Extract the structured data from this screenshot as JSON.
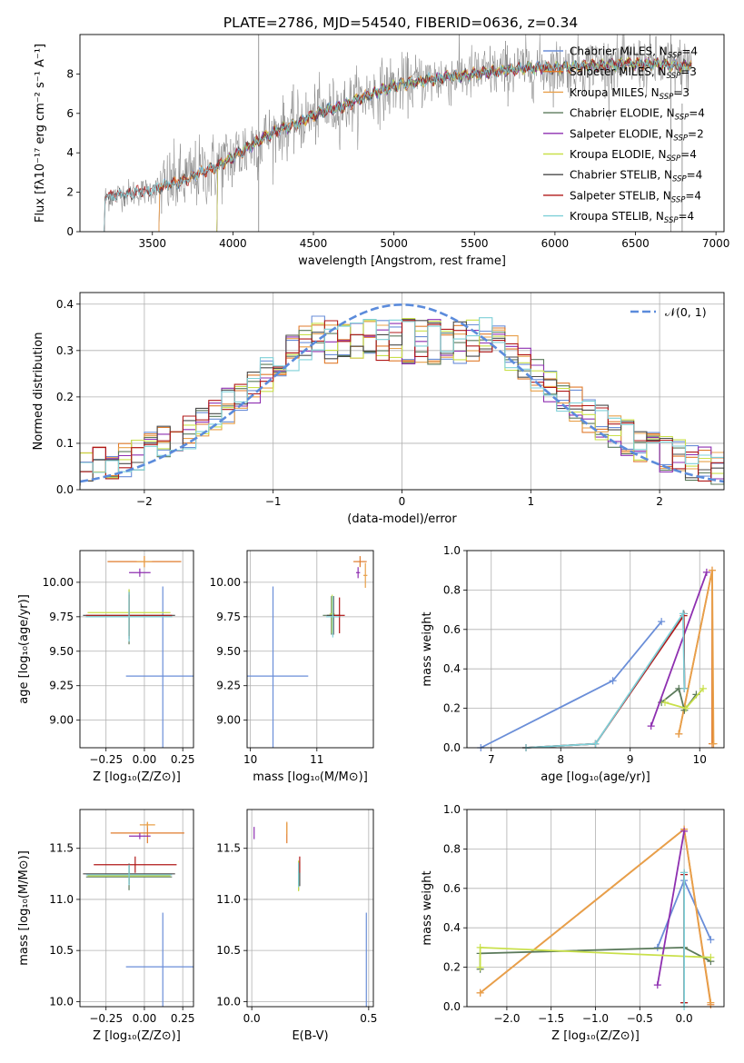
{
  "title": "PLATE=2786, MJD=54540, FIBERID=0636, z=0.34",
  "colors": {
    "Chabrier MILES": "#6a8ed8",
    "Salpeter MILES": "#e07b2c",
    "Kroupa MILES": "#e8a04a",
    "Chabrier ELODIE": "#5b7a5b",
    "Salpeter ELODIE": "#8e2fb0",
    "Kroupa ELODIE": "#c9e04a",
    "Chabrier STELIB": "#4a4a4a",
    "Salpeter STELIB": "#b01818",
    "Kroupa STELIB": "#7fd0d8",
    "observed": "#808080",
    "normal": "#5b8bdb"
  },
  "chart_data": [
    {
      "type": "line",
      "title": "PLATE=2786, MJD=54540, FIBERID=0636, z=0.34",
      "xlabel": "wavelength [Angstrom, rest frame]",
      "ylabel": "Flux [fλ10⁻¹⁷ erg cm⁻² s⁻¹ A⁻¹]",
      "xlim": [
        3050,
        7050
      ],
      "ylim": [
        0,
        10
      ],
      "xticks": [
        "3500",
        "4000",
        "4500",
        "5000",
        "5500",
        "6000",
        "6500",
        "7000"
      ],
      "yticks": [
        "0",
        "2",
        "4",
        "6",
        "8"
      ],
      "legend_position": "top-right",
      "legend": [
        {
          "name": "Chabrier MILES",
          "text": "Chabrier MILES, N",
          "sub": "SSP",
          "suffix": "=4"
        },
        {
          "name": "Salpeter MILES",
          "text": "Salpeter MILES, N",
          "sub": "SSP",
          "suffix": "=3"
        },
        {
          "name": "Kroupa MILES",
          "text": "Kroupa MILES, N",
          "sub": "SSP",
          "suffix": "=3"
        },
        {
          "name": "Chabrier ELODIE",
          "text": "Chabrier ELODIE, N",
          "sub": "SSP",
          "suffix": "=4"
        },
        {
          "name": "Salpeter ELODIE",
          "text": "Salpeter ELODIE, N",
          "sub": "SSP",
          "suffix": "=2"
        },
        {
          "name": "Kroupa ELODIE",
          "text": "Kroupa ELODIE, N",
          "sub": "SSP",
          "suffix": "=4"
        },
        {
          "name": "Chabrier STELIB",
          "text": "Chabrier STELIB, N",
          "sub": "SSP",
          "suffix": "=4"
        },
        {
          "name": "Salpeter STELIB",
          "text": "Salpeter STELIB, N",
          "sub": "SSP",
          "suffix": "=4"
        },
        {
          "name": "Kroupa STELIB",
          "text": "Kroupa STELIB, N",
          "sub": "SSP",
          "suffix": "=4"
        }
      ],
      "continuum": {
        "x": [
          3200,
          3300,
          3400,
          3500,
          3600,
          3700,
          3800,
          3900,
          4000,
          4100,
          4200,
          4300,
          4400,
          4500,
          4600,
          4700,
          4800,
          4900,
          5000,
          5200,
          5400,
          5600,
          5800,
          6000,
          6200,
          6400,
          6600,
          6800,
          6850
        ],
        "y": [
          1.7,
          1.9,
          2.0,
          2.1,
          2.4,
          2.6,
          3.0,
          3.3,
          3.8,
          4.3,
          4.8,
          5.2,
          5.5,
          5.9,
          6.2,
          6.4,
          6.8,
          7.1,
          7.4,
          7.7,
          7.9,
          8.1,
          8.3,
          8.3,
          8.4,
          8.5,
          8.5,
          8.4,
          8.4
        ]
      },
      "model_start_wavelengths": {
        "Chabrier MILES": 3540,
        "Salpeter MILES": 3540,
        "Kroupa MILES": 3540,
        "Chabrier ELODIE": 3900,
        "Salpeter ELODIE": 3900,
        "Kroupa ELODIE": 3900,
        "Chabrier STELIB": 3200,
        "Salpeter STELIB": 3200,
        "Kroupa STELIB": 3200
      }
    },
    {
      "type": "bar",
      "subtype": "step-histogram",
      "xlabel": "(data-model)/error",
      "ylabel": "Normed distribution",
      "xlim": [
        -2.5,
        2.5
      ],
      "ylim": [
        0,
        0.425
      ],
      "xticks": [
        "−2",
        "−1",
        "0",
        "1",
        "2"
      ],
      "yticks": [
        "0.0",
        "0.1",
        "0.2",
        "0.3",
        "0.4"
      ],
      "bin_width": 0.1,
      "legend_position": "top-right",
      "legend": [
        {
          "name": "N(0,1)",
          "label": "𝒩(0, 1)",
          "style": "dashed"
        }
      ]
    },
    {
      "type": "scatter",
      "subtype": "errorbar",
      "xlabel": "Z [log₁₀(Z/Z⊙)]",
      "ylabel": "age  [log₁₀(age/yr)]",
      "xlim": [
        -0.42,
        0.32
      ],
      "ylim": [
        8.8,
        10.23
      ],
      "xticks": [
        "−0.25",
        "0.00",
        "0.25"
      ],
      "yticks": [
        "9.00",
        "9.25",
        "9.50",
        "9.75",
        "10.00"
      ],
      "points": [
        {
          "model": "Chabrier MILES",
          "x": 0.12,
          "y": 9.32,
          "xerr": 0.24,
          "yerr": 0.65
        },
        {
          "model": "Salpeter MILES",
          "x": 0.0,
          "y": 10.15,
          "xerr": 0.24,
          "yerr": 0.04
        },
        {
          "model": "Kroupa MILES",
          "x": 0.0,
          "y": 10.15,
          "xerr": 0.05,
          "yerr": 0.04
        },
        {
          "model": "Chabrier ELODIE",
          "x": -0.1,
          "y": 9.75,
          "xerr": 0.28,
          "yerr": 0.2
        },
        {
          "model": "Salpeter ELODIE",
          "x": -0.03,
          "y": 10.07,
          "xerr": 0.07,
          "yerr": 0.03
        },
        {
          "model": "Kroupa ELODIE",
          "x": -0.1,
          "y": 9.78,
          "xerr": 0.27,
          "yerr": 0.17
        },
        {
          "model": "Chabrier STELIB",
          "x": -0.1,
          "y": 9.76,
          "xerr": 0.3,
          "yerr": 0.17
        },
        {
          "model": "Salpeter STELIB",
          "x": -0.1,
          "y": 9.76,
          "xerr": 0.28,
          "yerr": 0.15
        },
        {
          "model": "Kroupa STELIB",
          "x": -0.1,
          "y": 9.75,
          "xerr": 0.28,
          "yerr": 0.18
        }
      ]
    },
    {
      "type": "scatter",
      "subtype": "errorbar",
      "xlabel": "mass [log₁₀(M/M⊙)]",
      "ylabel": "",
      "xlim": [
        9.95,
        11.85
      ],
      "ylim": [
        8.8,
        10.23
      ],
      "xticks": [
        "10",
        "11"
      ],
      "yticks": [
        "9.00",
        "9.25",
        "9.50",
        "9.75",
        "10.00"
      ],
      "points": [
        {
          "model": "Chabrier MILES",
          "x": 10.34,
          "y": 9.32,
          "xerr": 0.53,
          "yerr": 0.65
        },
        {
          "model": "Salpeter MILES",
          "x": 11.65,
          "y": 10.15,
          "xerr": 0.1,
          "yerr": 0.04
        },
        {
          "model": "Kroupa MILES",
          "x": 11.73,
          "y": 10.05,
          "xerr": 0.03,
          "yerr": 0.09
        },
        {
          "model": "Chabrier ELODIE",
          "x": 11.22,
          "y": 9.76,
          "xerr": 0.13,
          "yerr": 0.14
        },
        {
          "model": "Salpeter ELODIE",
          "x": 11.62,
          "y": 10.07,
          "xerr": 0.03,
          "yerr": 0.04
        },
        {
          "model": "Kroupa ELODIE",
          "x": 11.23,
          "y": 9.77,
          "xerr": 0.04,
          "yerr": 0.14
        },
        {
          "model": "Chabrier STELIB",
          "x": 11.25,
          "y": 9.76,
          "xerr": 0.1,
          "yerr": 0.14
        },
        {
          "model": "Salpeter STELIB",
          "x": 11.34,
          "y": 9.76,
          "xerr": 0.08,
          "yerr": 0.13
        },
        {
          "model": "Kroupa STELIB",
          "x": 11.24,
          "y": 9.75,
          "xerr": 0.1,
          "yerr": 0.15
        }
      ]
    },
    {
      "type": "line",
      "xlabel": "age  [log₁₀(age/yr)]",
      "ylabel": "mass weight",
      "xlim": [
        6.65,
        10.35
      ],
      "ylim": [
        0,
        1.0
      ],
      "xticks": [
        "7",
        "8",
        "9",
        "10"
      ],
      "yticks": [
        "0.0",
        "0.2",
        "0.4",
        "0.6",
        "0.8",
        "1.0"
      ],
      "series": [
        {
          "model": "Chabrier MILES",
          "x": [
            6.85,
            8.75,
            9.45
          ],
          "y": [
            0.0,
            0.34,
            0.64
          ]
        },
        {
          "model": "Salpeter MILES",
          "x": [
            9.7,
            10.18,
            10.18
          ],
          "y": [
            0.07,
            0.9,
            0.02
          ]
        },
        {
          "model": "Kroupa MILES",
          "x": [
            9.7,
            10.18,
            10.2
          ],
          "y": [
            0.07,
            0.9,
            0.02
          ]
        },
        {
          "model": "Chabrier ELODIE",
          "x": [
            9.45,
            9.7,
            9.78,
            9.95
          ],
          "y": [
            0.23,
            0.3,
            0.19,
            0.27
          ]
        },
        {
          "model": "Salpeter ELODIE",
          "x": [
            9.3,
            10.1
          ],
          "y": [
            0.11,
            0.89
          ]
        },
        {
          "model": "Kroupa ELODIE",
          "x": [
            9.5,
            9.8,
            10.05
          ],
          "y": [
            0.23,
            0.2,
            0.3
          ]
        },
        {
          "model": "Chabrier STELIB",
          "x": [
            7.5,
            8.5,
            9.77,
            9.78
          ],
          "y": [
            0.0,
            0.02,
            0.68,
            0.3
          ]
        },
        {
          "model": "Salpeter STELIB",
          "x": [
            7.5,
            8.5,
            9.77,
            9.78
          ],
          "y": [
            0.0,
            0.02,
            0.67,
            0.3
          ]
        },
        {
          "model": "Kroupa STELIB",
          "x": [
            7.5,
            8.5,
            9.76,
            9.78
          ],
          "y": [
            0.0,
            0.02,
            0.68,
            0.3
          ]
        }
      ]
    },
    {
      "type": "scatter",
      "subtype": "errorbar",
      "xlabel": "Z [log₁₀(Z/Z⊙)]",
      "ylabel": "mass [log₁₀(M/M⊙)]",
      "xlim": [
        -0.42,
        0.32
      ],
      "ylim": [
        9.95,
        11.88
      ],
      "xticks": [
        "−0.25",
        "0.00",
        "0.25"
      ],
      "yticks": [
        "10.0",
        "10.5",
        "11.0",
        "11.5"
      ],
      "points": [
        {
          "model": "Chabrier MILES",
          "x": 0.12,
          "y": 10.34,
          "xerr": 0.24,
          "yerr": 0.53
        },
        {
          "model": "Salpeter MILES",
          "x": 0.02,
          "y": 11.65,
          "xerr": 0.24,
          "yerr": 0.1
        },
        {
          "model": "Kroupa MILES",
          "x": 0.02,
          "y": 11.73,
          "xerr": 0.05,
          "yerr": 0.03
        },
        {
          "model": "Chabrier ELODIE",
          "x": -0.1,
          "y": 11.22,
          "xerr": 0.28,
          "yerr": 0.13
        },
        {
          "model": "Salpeter ELODIE",
          "x": -0.03,
          "y": 11.62,
          "xerr": 0.07,
          "yerr": 0.03
        },
        {
          "model": "Kroupa ELODIE",
          "x": -0.1,
          "y": 11.23,
          "xerr": 0.27,
          "yerr": 0.05
        },
        {
          "model": "Chabrier STELIB",
          "x": -0.1,
          "y": 11.25,
          "xerr": 0.3,
          "yerr": 0.1
        },
        {
          "model": "Salpeter STELIB",
          "x": -0.06,
          "y": 11.34,
          "xerr": 0.27,
          "yerr": 0.08
        },
        {
          "model": "Kroupa STELIB",
          "x": -0.1,
          "y": 11.24,
          "xerr": 0.28,
          "yerr": 0.1
        }
      ]
    },
    {
      "type": "scatter",
      "subtype": "errorbar",
      "xlabel": "E(B-V)",
      "ylabel": "",
      "xlim": [
        -0.02,
        0.52
      ],
      "ylim": [
        9.95,
        11.88
      ],
      "xticks": [
        "0.0",
        "0.5"
      ],
      "yticks": [
        "10.0",
        "10.5",
        "11.0",
        "11.5"
      ],
      "points": [
        {
          "model": "Chabrier MILES",
          "x": 0.49,
          "y": 10.34,
          "xerr": 0,
          "yerr": 0.53
        },
        {
          "model": "Salpeter MILES",
          "x": 0.15,
          "y": 11.65,
          "xerr": 0,
          "yerr": 0.1
        },
        {
          "model": "Kroupa MILES",
          "x": 0.15,
          "y": 11.7,
          "xerr": 0,
          "yerr": 0.06
        },
        {
          "model": "Chabrier ELODIE",
          "x": 0.2,
          "y": 11.22,
          "xerr": 0,
          "yerr": 0.13
        },
        {
          "model": "Salpeter ELODIE",
          "x": 0.01,
          "y": 11.65,
          "xerr": 0,
          "yerr": 0.06
        },
        {
          "model": "Kroupa ELODIE",
          "x": 0.2,
          "y": 11.23,
          "xerr": 0,
          "yerr": 0.15
        },
        {
          "model": "Chabrier STELIB",
          "x": 0.205,
          "y": 11.25,
          "xerr": 0,
          "yerr": 0.12
        },
        {
          "model": "Salpeter STELIB",
          "x": 0.205,
          "y": 11.34,
          "xerr": 0,
          "yerr": 0.08
        },
        {
          "model": "Kroupa STELIB",
          "x": 0.2,
          "y": 11.24,
          "xerr": 0,
          "yerr": 0.12
        }
      ]
    },
    {
      "type": "line",
      "xlabel": "Z [log₁₀(Z/Z⊙)]",
      "ylabel": "mass weight",
      "xlim": [
        -2.45,
        0.45
      ],
      "ylim": [
        0,
        1.0
      ],
      "xticks": [
        "−2.0",
        "−1.5",
        "−1.0",
        "−0.5",
        "0.0"
      ],
      "yticks": [
        "0.0",
        "0.2",
        "0.4",
        "0.6",
        "0.8",
        "1.0"
      ],
      "series": [
        {
          "model": "Chabrier MILES",
          "x": [
            -0.3,
            0.0,
            0.3
          ],
          "y": [
            0.3,
            0.64,
            0.34
          ]
        },
        {
          "model": "Salpeter MILES",
          "x": [
            -2.3,
            0.0,
            0.3
          ],
          "y": [
            0.07,
            0.9,
            0.01
          ]
        },
        {
          "model": "Kroupa MILES",
          "x": [
            -2.3,
            0.0,
            0.3
          ],
          "y": [
            0.07,
            0.9,
            0.02
          ]
        },
        {
          "model": "Chabrier ELODIE",
          "x": [
            -2.3,
            -2.3,
            0.0,
            0.3
          ],
          "y": [
            0.19,
            0.27,
            0.3,
            0.23
          ]
        },
        {
          "model": "Salpeter ELODIE",
          "x": [
            -0.3,
            0.0
          ],
          "y": [
            0.11,
            0.89
          ]
        },
        {
          "model": "Kroupa ELODIE",
          "x": [
            -2.3,
            -2.3,
            0.3
          ],
          "y": [
            0.2,
            0.3,
            0.25
          ]
        },
        {
          "model": "Chabrier STELIB",
          "x": [
            0.0,
            0.0
          ],
          "y": [
            0.02,
            0.68
          ]
        },
        {
          "model": "Salpeter STELIB",
          "x": [
            0.0,
            0.0
          ],
          "y": [
            0.02,
            0.67
          ]
        },
        {
          "model": "Kroupa STELIB",
          "x": [
            0.0,
            0.0
          ],
          "y": [
            0.0,
            0.68
          ]
        }
      ]
    }
  ]
}
